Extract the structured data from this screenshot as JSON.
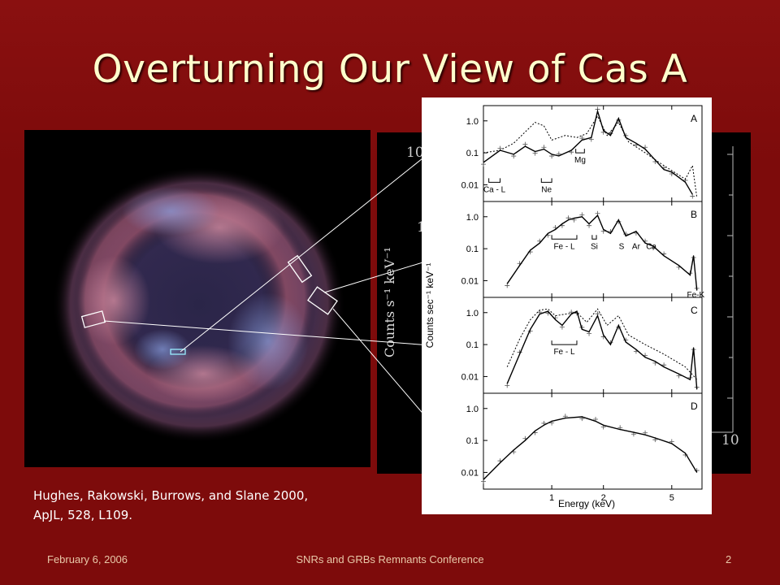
{
  "slide": {
    "title": "Overturning Our View of Cas A",
    "citation_line1": "Hughes, Rakowski, Burrows, and Slane 2000,",
    "citation_line2": "ApJL, 528, L109.",
    "footer_date": "February 6, 2006",
    "footer_conference": "SNRs and GRBs Remnants Conference",
    "footer_page": "2"
  },
  "background_plot": {
    "ylabel": "Counts s⁻¹ keV⁻¹",
    "tick_top": "10",
    "tick_mid": "1",
    "tick_xend": "10"
  },
  "chart_data": {
    "type": "line",
    "xlabel": "Energy (keV)",
    "ylabel": "Counts sec⁻¹ keV⁻¹",
    "xscale": "log",
    "yscale": "log",
    "xlim": [
      0.4,
      7.5
    ],
    "ylim": [
      0.003,
      3
    ],
    "x_ticks": [
      "1",
      "2",
      "5"
    ],
    "y_ticks": [
      "1.0",
      "0.1",
      "0.01"
    ],
    "panels": [
      {
        "label": "A",
        "annotations": [
          "Ca - L",
          "Ne",
          "Mg"
        ],
        "model": [
          [
            0.4,
            0.05
          ],
          [
            0.5,
            0.12
          ],
          [
            0.6,
            0.09
          ],
          [
            0.7,
            0.16
          ],
          [
            0.8,
            0.11
          ],
          [
            0.9,
            0.13
          ],
          [
            1.0,
            0.09
          ],
          [
            1.1,
            0.08
          ],
          [
            1.3,
            0.12
          ],
          [
            1.5,
            0.25
          ],
          [
            1.7,
            0.3
          ],
          [
            1.85,
            2.0
          ],
          [
            2.0,
            0.5
          ],
          [
            2.2,
            0.35
          ],
          [
            2.45,
            1.2
          ],
          [
            2.7,
            0.3
          ],
          [
            3.1,
            0.2
          ],
          [
            3.5,
            0.13
          ],
          [
            4.0,
            0.06
          ],
          [
            4.5,
            0.03
          ],
          [
            5.0,
            0.025
          ],
          [
            6.0,
            0.012
          ],
          [
            6.6,
            0.005
          ]
        ],
        "alt_model": [
          [
            0.4,
            0.1
          ],
          [
            0.5,
            0.12
          ],
          [
            0.6,
            0.2
          ],
          [
            0.7,
            0.45
          ],
          [
            0.8,
            0.9
          ],
          [
            0.9,
            0.7
          ],
          [
            1.0,
            0.25
          ],
          [
            1.2,
            0.35
          ],
          [
            1.4,
            0.3
          ],
          [
            1.6,
            0.4
          ],
          [
            1.85,
            1.4
          ],
          [
            2.1,
            0.35
          ],
          [
            2.45,
            0.9
          ],
          [
            2.8,
            0.22
          ],
          [
            3.5,
            0.1
          ],
          [
            4.5,
            0.04
          ],
          [
            6.0,
            0.015
          ],
          [
            6.6,
            0.04
          ],
          [
            7.0,
            0.004
          ]
        ]
      },
      {
        "label": "B",
        "annotations": [
          "Fe - L",
          "Si",
          "S",
          "Ar",
          "Ca",
          "Fe-K"
        ],
        "model": [
          [
            0.55,
            0.008
          ],
          [
            0.65,
            0.03
          ],
          [
            0.75,
            0.09
          ],
          [
            0.85,
            0.15
          ],
          [
            0.95,
            0.3
          ],
          [
            1.05,
            0.4
          ],
          [
            1.15,
            0.6
          ],
          [
            1.25,
            0.8
          ],
          [
            1.35,
            0.9
          ],
          [
            1.5,
            1.0
          ],
          [
            1.65,
            0.6
          ],
          [
            1.85,
            1.1
          ],
          [
            2.0,
            0.4
          ],
          [
            2.2,
            0.3
          ],
          [
            2.45,
            0.8
          ],
          [
            2.7,
            0.25
          ],
          [
            3.1,
            0.35
          ],
          [
            3.5,
            0.15
          ],
          [
            3.9,
            0.12
          ],
          [
            4.5,
            0.06
          ],
          [
            5.5,
            0.03
          ],
          [
            6.4,
            0.015
          ],
          [
            6.7,
            0.06
          ],
          [
            7.0,
            0.005
          ]
        ],
        "alt_model": []
      },
      {
        "label": "C",
        "annotations": [
          "Fe - L"
        ],
        "model": [
          [
            0.55,
            0.006
          ],
          [
            0.65,
            0.05
          ],
          [
            0.75,
            0.3
          ],
          [
            0.85,
            0.9
          ],
          [
            0.95,
            1.1
          ],
          [
            1.05,
            0.6
          ],
          [
            1.15,
            0.4
          ],
          [
            1.3,
            0.9
          ],
          [
            1.4,
            1.1
          ],
          [
            1.5,
            0.3
          ],
          [
            1.65,
            0.25
          ],
          [
            1.85,
            0.8
          ],
          [
            2.0,
            0.2
          ],
          [
            2.2,
            0.1
          ],
          [
            2.45,
            0.4
          ],
          [
            2.7,
            0.12
          ],
          [
            3.1,
            0.07
          ],
          [
            3.5,
            0.04
          ],
          [
            4.0,
            0.03
          ],
          [
            4.5,
            0.02
          ],
          [
            5.5,
            0.012
          ],
          [
            6.4,
            0.008
          ],
          [
            6.7,
            0.08
          ],
          [
            7.0,
            0.004
          ]
        ],
        "alt_model": [
          [
            0.55,
            0.02
          ],
          [
            0.65,
            0.15
          ],
          [
            0.75,
            0.6
          ],
          [
            0.85,
            1.2
          ],
          [
            0.95,
            1.3
          ],
          [
            1.05,
            0.8
          ],
          [
            1.2,
            0.9
          ],
          [
            1.4,
            1.0
          ],
          [
            1.6,
            0.5
          ],
          [
            1.85,
            1.3
          ],
          [
            2.1,
            0.4
          ],
          [
            2.45,
            0.8
          ],
          [
            2.8,
            0.2
          ],
          [
            3.5,
            0.1
          ],
          [
            4.5,
            0.05
          ],
          [
            6.0,
            0.02
          ],
          [
            7.0,
            0.008
          ]
        ]
      },
      {
        "label": "D",
        "annotations": [],
        "model": [
          [
            0.4,
            0.006
          ],
          [
            0.5,
            0.02
          ],
          [
            0.6,
            0.05
          ],
          [
            0.7,
            0.1
          ],
          [
            0.8,
            0.2
          ],
          [
            0.9,
            0.3
          ],
          [
            1.0,
            0.4
          ],
          [
            1.2,
            0.5
          ],
          [
            1.5,
            0.55
          ],
          [
            1.8,
            0.4
          ],
          [
            2.0,
            0.3
          ],
          [
            2.5,
            0.22
          ],
          [
            3.0,
            0.18
          ],
          [
            3.5,
            0.15
          ],
          [
            4.0,
            0.12
          ],
          [
            5.0,
            0.08
          ],
          [
            6.0,
            0.04
          ],
          [
            7.0,
            0.01
          ]
        ],
        "alt_model": []
      }
    ]
  }
}
